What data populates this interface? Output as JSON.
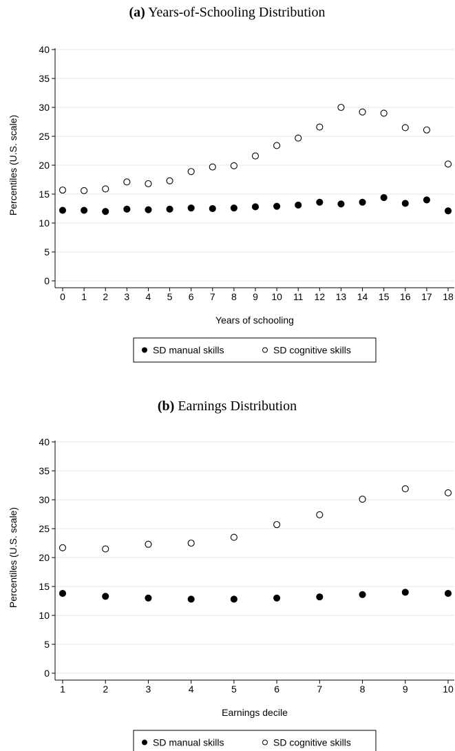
{
  "chart_data": [
    {
      "type": "scatter",
      "panel_label": "(a)",
      "title": "Years-of-Schooling Distribution",
      "xlabel": "Years of schooling",
      "ylabel": "Percentiles (U.S. scale)",
      "x": [
        0,
        1,
        2,
        3,
        4,
        5,
        6,
        7,
        8,
        9,
        10,
        11,
        12,
        13,
        14,
        15,
        16,
        17,
        18
      ],
      "ylim": [
        0,
        40
      ],
      "yticks": [
        0,
        5,
        10,
        15,
        20,
        25,
        30,
        35,
        40
      ],
      "grid": true,
      "legend_position": "bottom",
      "series": [
        {
          "name": "SD manual skills",
          "marker": "filled-circle",
          "values": [
            12.2,
            12.2,
            12.0,
            12.4,
            12.3,
            12.4,
            12.6,
            12.5,
            12.6,
            12.8,
            12.9,
            13.1,
            13.6,
            13.3,
            13.6,
            14.4,
            13.4,
            14.0,
            12.1
          ]
        },
        {
          "name": "SD cognitive skills",
          "marker": "hollow-circle",
          "values": [
            15.7,
            15.6,
            15.9,
            17.1,
            16.8,
            17.3,
            18.9,
            19.7,
            19.9,
            21.6,
            23.4,
            24.7,
            26.6,
            30.0,
            29.2,
            29.0,
            26.5,
            26.1,
            20.2
          ]
        }
      ]
    },
    {
      "type": "scatter",
      "panel_label": "(b)",
      "title": "Earnings Distribution",
      "xlabel": "Earnings decile",
      "ylabel": "Percentiles (U.S. scale)",
      "x": [
        1,
        2,
        3,
        4,
        5,
        6,
        7,
        8,
        9,
        10
      ],
      "ylim": [
        0,
        40
      ],
      "yticks": [
        0,
        5,
        10,
        15,
        20,
        25,
        30,
        35,
        40
      ],
      "grid": true,
      "legend_position": "bottom",
      "series": [
        {
          "name": "SD manual skills",
          "marker": "filled-circle",
          "values": [
            13.8,
            13.3,
            13.0,
            12.8,
            12.8,
            13.0,
            13.2,
            13.6,
            14.0,
            13.8
          ]
        },
        {
          "name": "SD cognitive skills",
          "marker": "hollow-circle",
          "values": [
            21.7,
            21.5,
            22.3,
            22.5,
            23.5,
            25.7,
            27.4,
            30.1,
            31.9,
            31.2
          ]
        }
      ]
    }
  ]
}
